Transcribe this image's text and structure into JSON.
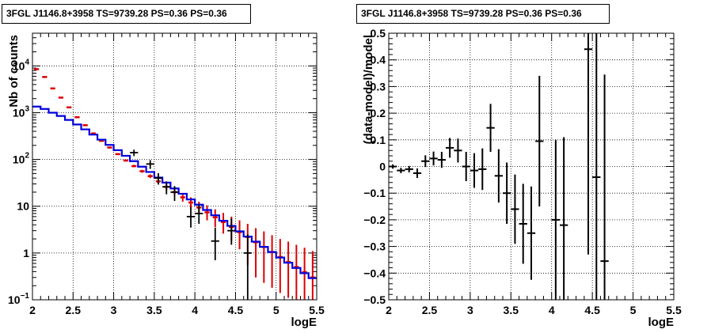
{
  "chart_data": [
    {
      "type": "line",
      "title": "3FGL J1146.8+3958 TS=9739.28 PS=0.36 PS=0.36",
      "xlabel": "logE",
      "ylabel": "Nb of counts",
      "xlim": [
        2,
        5.5
      ],
      "ylim": [
        0.1,
        50000
      ],
      "yscale": "log",
      "grid": true,
      "x_ticks": [
        "2",
        "2.5",
        "3",
        "3.5",
        "4",
        "4.5",
        "5",
        "5.5"
      ],
      "y_ticks": [
        {
          "value": 0.1,
          "label": "10",
          "exp": "−1"
        },
        {
          "value": 1,
          "label": "1",
          "exp": ""
        },
        {
          "value": 10,
          "label": "10",
          "exp": ""
        },
        {
          "value": 100,
          "label": "10",
          "exp": "2"
        },
        {
          "value": 1000,
          "label": "10",
          "exp": "3"
        },
        {
          "value": 10000,
          "label": "10",
          "exp": "4"
        }
      ],
      "bin_edges": [
        2.0,
        2.1,
        2.2,
        2.3,
        2.4,
        2.5,
        2.6,
        2.7,
        2.8,
        2.9,
        3.0,
        3.1,
        3.2,
        3.3,
        3.4,
        3.5,
        3.6,
        3.7,
        3.8,
        3.9,
        4.0,
        4.1,
        4.2,
        4.3,
        4.4,
        4.5,
        4.6,
        4.7,
        4.8,
        4.9,
        5.0,
        5.1,
        5.2,
        5.3,
        5.4,
        5.5
      ],
      "series": [
        {
          "role": "model-total",
          "color": "#dd0000",
          "values": [
            8500,
            5800,
            3300,
            2100,
            1300,
            800,
            540,
            360,
            250,
            180,
            130,
            95,
            72,
            56,
            44,
            34,
            26,
            20,
            15.5,
            12,
            9.4,
            7.4,
            5.8,
            4.6,
            3.6,
            2.8,
            2.2,
            1.7,
            1.35,
            1.05,
            0.82,
            0.64,
            0.5,
            0.39,
            0.3
          ],
          "err_low": [
            8300,
            5650,
            3200,
            2040,
            1260,
            770,
            520,
            345,
            240,
            172,
            125,
            90,
            68,
            52,
            40,
            30,
            22,
            17,
            12.5,
            9,
            6.8,
            5,
            3.6,
            2.6,
            1.8,
            1.2,
            0.55,
            0.3,
            0.23,
            0.18,
            0.14,
            0.11,
            0.1,
            0.1,
            0.1
          ],
          "err_high": [
            8700,
            5950,
            3400,
            2160,
            1340,
            830,
            560,
            375,
            260,
            188,
            136,
            100,
            77,
            60,
            48,
            38,
            30,
            24,
            19,
            15.5,
            12.5,
            10.5,
            8.6,
            7.2,
            6,
            5,
            4.2,
            3.4,
            2.9,
            2.4,
            2.0,
            1.75,
            1.5,
            1.3,
            1.1
          ]
        },
        {
          "role": "model",
          "color": "#0000dd",
          "values": [
            1350,
            1200,
            1000,
            850,
            700,
            560,
            440,
            340,
            265,
            205,
            158,
            120,
            92,
            70,
            54,
            41,
            32,
            24,
            18.5,
            14,
            10.8,
            8.3,
            6.4,
            4.9,
            3.8,
            2.9,
            2.25,
            1.75,
            1.35,
            1.05,
            0.8,
            0.62,
            0.48,
            0.37,
            0.29
          ]
        },
        {
          "role": "data",
          "color": "#000000",
          "values": [
            8300,
            5600,
            3200,
            2000,
            1250,
            790,
            520,
            370,
            255,
            180,
            128,
            92,
            70,
            58,
            46,
            35,
            26,
            18,
            17,
            12,
            8.5,
            6.3,
            6.6,
            3.6,
            3.2,
            2.3,
            2.9,
            1.2,
            1.4,
            1.1,
            0.9,
            0.7,
            0.55,
            0.42,
            0.33
          ],
          "points": [
            {
              "x": 3.25,
              "y": 140,
              "lo": 118,
              "hi": 162
            },
            {
              "x": 3.45,
              "y": 80,
              "lo": 63,
              "hi": 97
            },
            {
              "x": 3.55,
              "y": 40,
              "lo": 29,
              "hi": 51
            },
            {
              "x": 3.65,
              "y": 26,
              "lo": 18,
              "hi": 34
            },
            {
              "x": 3.75,
              "y": 20,
              "lo": 13,
              "hi": 27
            },
            {
              "x": 3.95,
              "y": 6,
              "lo": 3.5,
              "hi": 9.5
            },
            {
              "x": 4.05,
              "y": 7,
              "lo": 4.2,
              "hi": 10.5
            },
            {
              "x": 4.25,
              "y": 1.8,
              "lo": 0.7,
              "hi": 3.5
            },
            {
              "x": 4.45,
              "y": 3,
              "lo": 1.5,
              "hi": 5.5
            },
            {
              "x": 4.65,
              "y": 1.0,
              "lo": 0.1,
              "hi": 2.5
            }
          ]
        }
      ]
    },
    {
      "type": "scatter",
      "title": "3FGL J1146.8+3958 TS=9739.28 PS=0.36 PS=0.36",
      "xlabel": "logE",
      "ylabel": "(data-model)/model",
      "xlim": [
        2,
        5.5
      ],
      "ylim": [
        -0.5,
        0.5
      ],
      "grid": true,
      "x_ticks": [
        "2",
        "2.5",
        "3",
        "3.5",
        "4",
        "4.5",
        "5",
        "5.5"
      ],
      "y_ticks": [
        "−0.5",
        "−0.4",
        "−0.3",
        "−0.2",
        "−0.1",
        "0",
        "0.1",
        "0.2",
        "0.3",
        "0.4",
        "0.5"
      ],
      "series": [
        {
          "color": "#000000",
          "points": [
            {
              "x": 2.05,
              "y": 0.0,
              "err": 0.008
            },
            {
              "x": 2.15,
              "y": -0.015,
              "err": 0.01
            },
            {
              "x": 2.25,
              "y": -0.01,
              "err": 0.012
            },
            {
              "x": 2.35,
              "y": -0.025,
              "err": 0.018
            },
            {
              "x": 2.45,
              "y": 0.02,
              "err": 0.022
            },
            {
              "x": 2.55,
              "y": 0.03,
              "err": 0.026
            },
            {
              "x": 2.65,
              "y": 0.025,
              "err": 0.03
            },
            {
              "x": 2.75,
              "y": 0.07,
              "err": 0.037
            },
            {
              "x": 2.85,
              "y": 0.06,
              "err": 0.045
            },
            {
              "x": 2.95,
              "y": 0.0,
              "err": 0.055
            },
            {
              "x": 3.05,
              "y": -0.015,
              "err": 0.065
            },
            {
              "x": 3.15,
              "y": -0.01,
              "err": 0.078
            },
            {
              "x": 3.25,
              "y": 0.145,
              "err": 0.09
            },
            {
              "x": 3.35,
              "y": -0.035,
              "err": 0.1
            },
            {
              "x": 3.45,
              "y": -0.1,
              "err": 0.115
            },
            {
              "x": 3.55,
              "y": -0.16,
              "err": 0.13
            },
            {
              "x": 3.65,
              "y": -0.215,
              "err": 0.15
            },
            {
              "x": 3.75,
              "y": -0.25,
              "err": 0.175
            },
            {
              "x": 3.85,
              "y": 0.095,
              "err": 0.245
            },
            {
              "x": 4.05,
              "y": -0.2,
              "err": 0.3
            },
            {
              "x": 4.15,
              "y": -0.22,
              "err": 0.33
            },
            {
              "x": 4.45,
              "y": 0.44,
              "err": 0.77
            },
            {
              "x": 4.55,
              "y": -0.04,
              "err": 0.7
            },
            {
              "x": 4.65,
              "y": -0.355,
              "err": 0.7
            }
          ]
        }
      ]
    }
  ]
}
